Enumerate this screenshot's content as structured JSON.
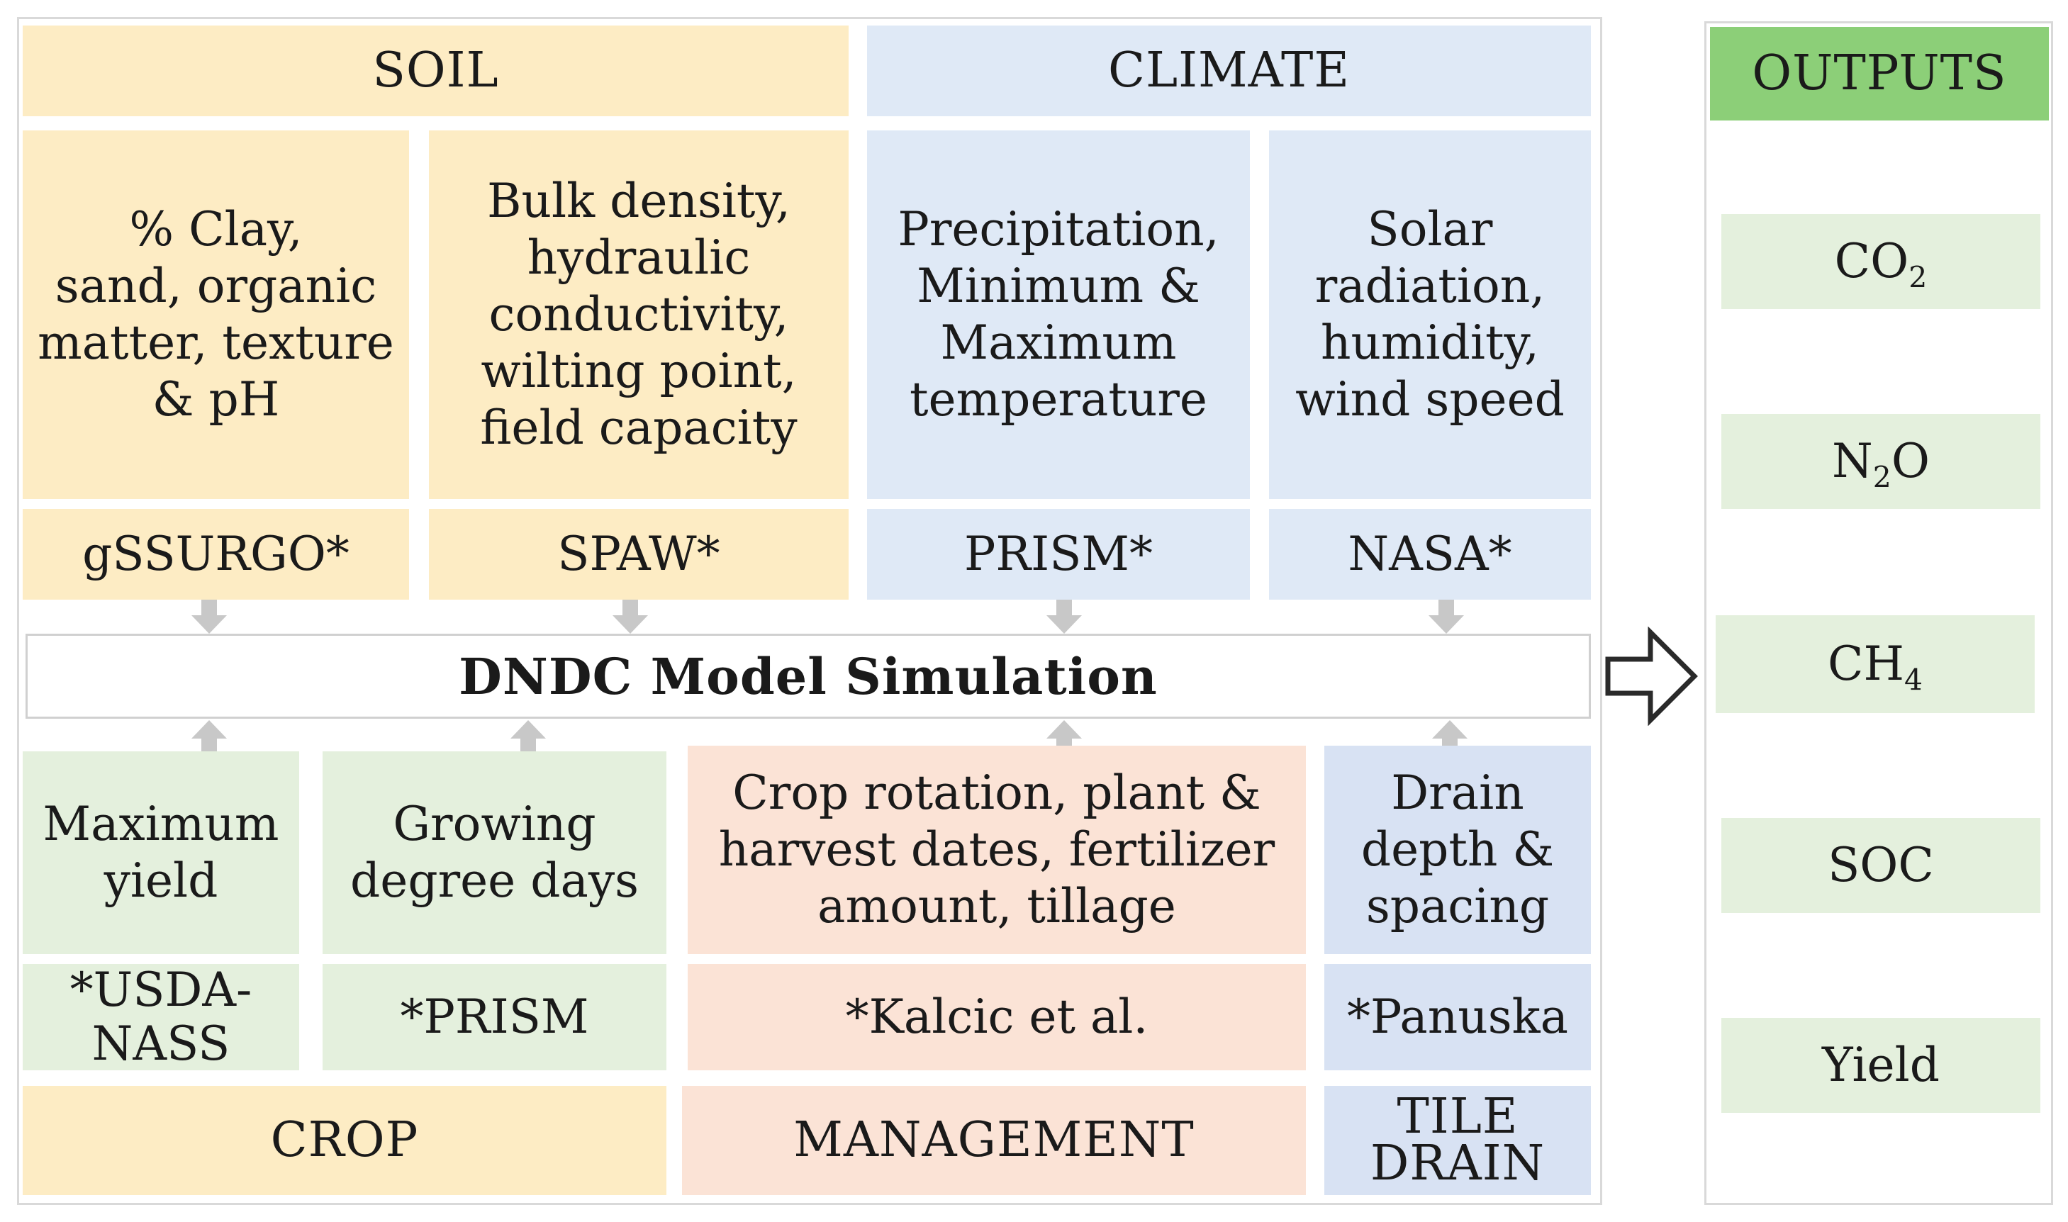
{
  "groups": {
    "soil": "SOIL",
    "climate": "CLIMATE",
    "crop": "CROP",
    "management": "MANAGEMENT",
    "tile_drain": "TILE\nDRAIN",
    "outputs": "OUTPUTS"
  },
  "inputs": {
    "soil_1": {
      "desc": "% Clay,\nsand, organic\nmatter, texture\n& pH",
      "source": "gSSURGO*"
    },
    "soil_2": {
      "desc": "Bulk density,\nhydraulic\nconductivity,\nwilting point,\nfield capacity",
      "source": "SPAW*"
    },
    "climate_1": {
      "desc": "Precipitation,\nMinimum &\nMaximum\ntemperature",
      "source": "PRISM*"
    },
    "climate_2": {
      "desc": "Solar\nradiation,\nhumidity,\nwind speed",
      "source": "NASA*"
    },
    "crop_1": {
      "desc": "Maximum\nyield",
      "source": "*USDA-\nNASS"
    },
    "crop_2": {
      "desc": "Growing\ndegree days",
      "source": "*PRISM"
    },
    "management": {
      "desc": "Crop rotation, plant &\nharvest dates, fertilizer\namount, tillage",
      "source": "*Kalcic et al."
    },
    "tile_drain": {
      "desc": "Drain\ndepth &\nspacing",
      "source": "*Panuska"
    }
  },
  "model": "DNDC Model Simulation",
  "outputs": [
    {
      "base": "CO",
      "sub": "2",
      "suffix": ""
    },
    {
      "base": "N",
      "sub": "2",
      "suffix": "O"
    },
    {
      "base": "CH",
      "sub": "4",
      "suffix": ""
    },
    {
      "base": "SOC",
      "sub": "",
      "suffix": ""
    },
    {
      "base": "Yield",
      "sub": "",
      "suffix": ""
    }
  ],
  "colors": {
    "soil_crop": "#fdecc4",
    "climate": "#dfe9f6",
    "crop_green": "#e4f0dd",
    "management": "#fbe3d6",
    "tile_drain": "#d8e2f3",
    "outputs_header": "#8ccf78",
    "outputs_item": "#e4f0dd",
    "connector_arrow": "#c8c8c8"
  }
}
